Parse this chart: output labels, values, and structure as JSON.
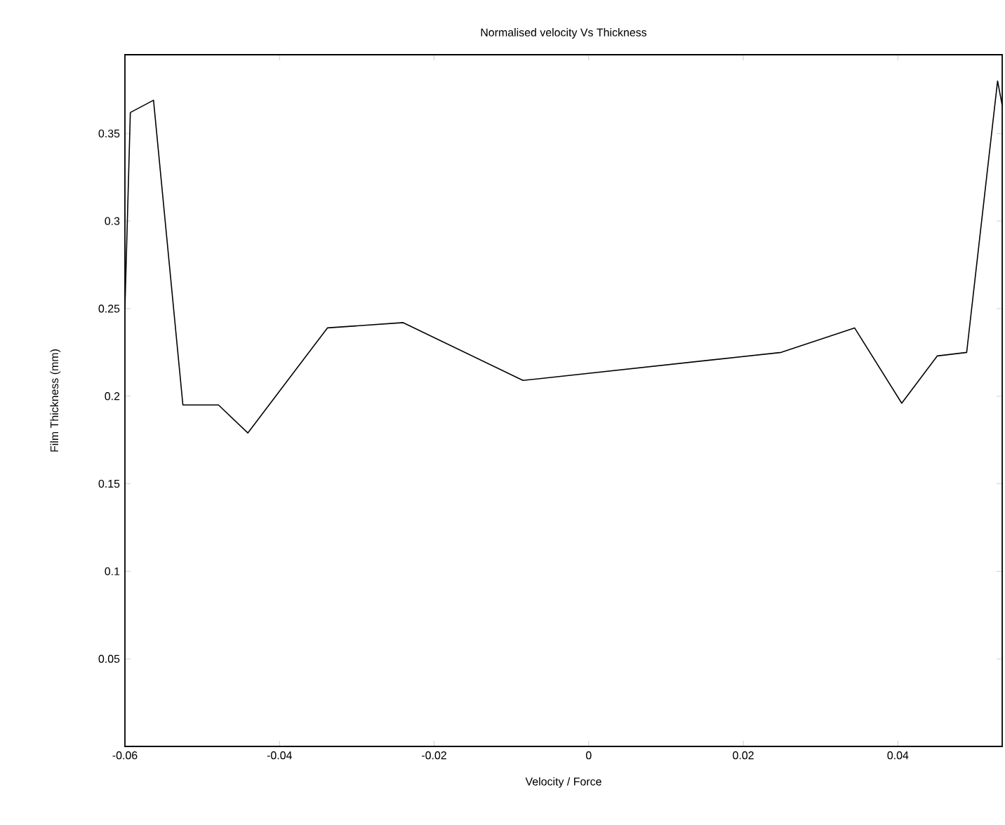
{
  "chart_data": {
    "type": "line",
    "title": "Normalised velocity Vs Thickness",
    "xlabel": "Velocity / Force",
    "ylabel": "Film Thickness (mm)",
    "x": [
      -0.06,
      -0.0593,
      -0.0563,
      -0.0525,
      -0.0479,
      -0.0441,
      -0.0338,
      -0.024,
      -0.0085,
      0.0249,
      0.0344,
      0.0405,
      0.0451,
      0.0489,
      0.0529,
      0.0535
    ],
    "series": [
      {
        "color": "#000000",
        "values": [
          0.25,
          0.362,
          0.369,
          0.195,
          0.195,
          0.179,
          0.239,
          0.242,
          0.209,
          0.225,
          0.239,
          0.196,
          0.223,
          0.225,
          0.38,
          0.366
        ]
      }
    ],
    "xlim": [
      -0.06,
      0.0535
    ],
    "ylim": [
      0,
      0.395
    ],
    "xticks": [
      -0.06,
      -0.04,
      -0.02,
      0,
      0.02,
      0.04
    ],
    "yticks": [
      0.05,
      0.1,
      0.15,
      0.2,
      0.25,
      0.3,
      0.35
    ],
    "grid": false,
    "marker": "none",
    "line_style": "solid"
  }
}
